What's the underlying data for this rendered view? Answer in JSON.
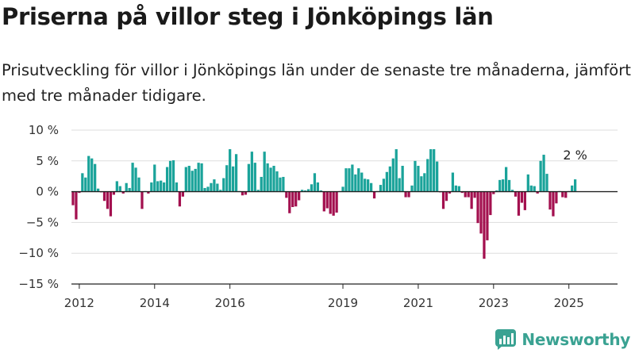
{
  "title": "Priserna på villor steg i Jönköpings län",
  "subtitle": "Prisutveckling för villor i Jönköpings län under de senaste tre månaderna, jämfört med tre månader tidigare.",
  "brand": {
    "name": "Newsworthy",
    "icon": "newsworthy-logo-icon"
  },
  "colors": {
    "positive": "#1aa39a",
    "negative": "#a3104f",
    "grid": "#dddddd",
    "zero_line": "#222222"
  },
  "chart_data": {
    "type": "bar",
    "title": "",
    "xlabel": "",
    "ylabel": "",
    "ylim": [
      -15,
      10
    ],
    "yticks": [
      10,
      5,
      0,
      -5,
      -10,
      -15
    ],
    "ytick_labels": [
      "10 %",
      "5 %",
      "0 %",
      "−5 %",
      "−10 %",
      "−15 %"
    ],
    "xticks": [
      "2012",
      "2014",
      "2016",
      "2019",
      "2021",
      "2023",
      "2025"
    ],
    "x_start": "2011-11",
    "frequency": "monthly",
    "grid": "horizontal",
    "annotation": {
      "text": "2 %",
      "at": "last"
    },
    "values": [
      -2.2,
      -4.5,
      -0.2,
      3.0,
      2.3,
      5.8,
      5.4,
      4.5,
      0.5,
      -0.1,
      -1.5,
      -2.8,
      -4.0,
      -0.5,
      1.7,
      0.9,
      -0.3,
      1.4,
      0.6,
      4.7,
      3.9,
      2.3,
      -2.8,
      0.1,
      -0.3,
      1.5,
      4.4,
      1.7,
      1.8,
      1.5,
      4.0,
      5.0,
      5.1,
      1.5,
      -2.4,
      -0.8,
      4.0,
      4.2,
      3.4,
      3.7,
      4.7,
      4.6,
      0.6,
      0.8,
      1.4,
      2.0,
      1.3,
      0.3,
      2.2,
      4.3,
      6.9,
      4.1,
      6.1,
      0.1,
      -0.6,
      -0.5,
      4.5,
      6.5,
      4.7,
      0.3,
      2.4,
      6.5,
      4.6,
      3.9,
      4.2,
      3.3,
      2.3,
      2.4,
      -1.0,
      -3.5,
      -2.5,
      -2.4,
      -1.4,
      0.3,
      0.2,
      0.4,
      1.2,
      3.0,
      1.5,
      0.2,
      -3.2,
      -2.7,
      -3.6,
      -3.9,
      -3.4,
      0.1,
      0.8,
      3.8,
      3.8,
      4.4,
      2.8,
      3.8,
      3.1,
      2.1,
      2.0,
      1.4,
      -1.1,
      0.1,
      1.1,
      2.1,
      3.2,
      4.1,
      5.4,
      6.9,
      2.2,
      4.2,
      -0.9,
      -0.9,
      1.0,
      5.0,
      4.2,
      2.5,
      3.0,
      5.3,
      6.9,
      6.9,
      4.9,
      -0.1,
      -2.8,
      -1.5,
      -0.3,
      3.1,
      1.0,
      0.9,
      -0.2,
      -0.9,
      -0.9,
      -2.8,
      -1.0,
      -5.1,
      -6.8,
      -10.9,
      -7.9,
      -3.8,
      -0.4,
      0.2,
      1.9,
      2.0,
      4.0,
      1.9,
      0.3,
      -0.8,
      -3.9,
      -1.8,
      -3.0,
      2.8,
      1.0,
      0.9,
      -0.3,
      5.0,
      6.0,
      2.9,
      -2.9,
      -4.0,
      -1.9,
      0.1,
      -0.9,
      -1.0,
      0.1,
      1.0,
      2.0
    ]
  }
}
